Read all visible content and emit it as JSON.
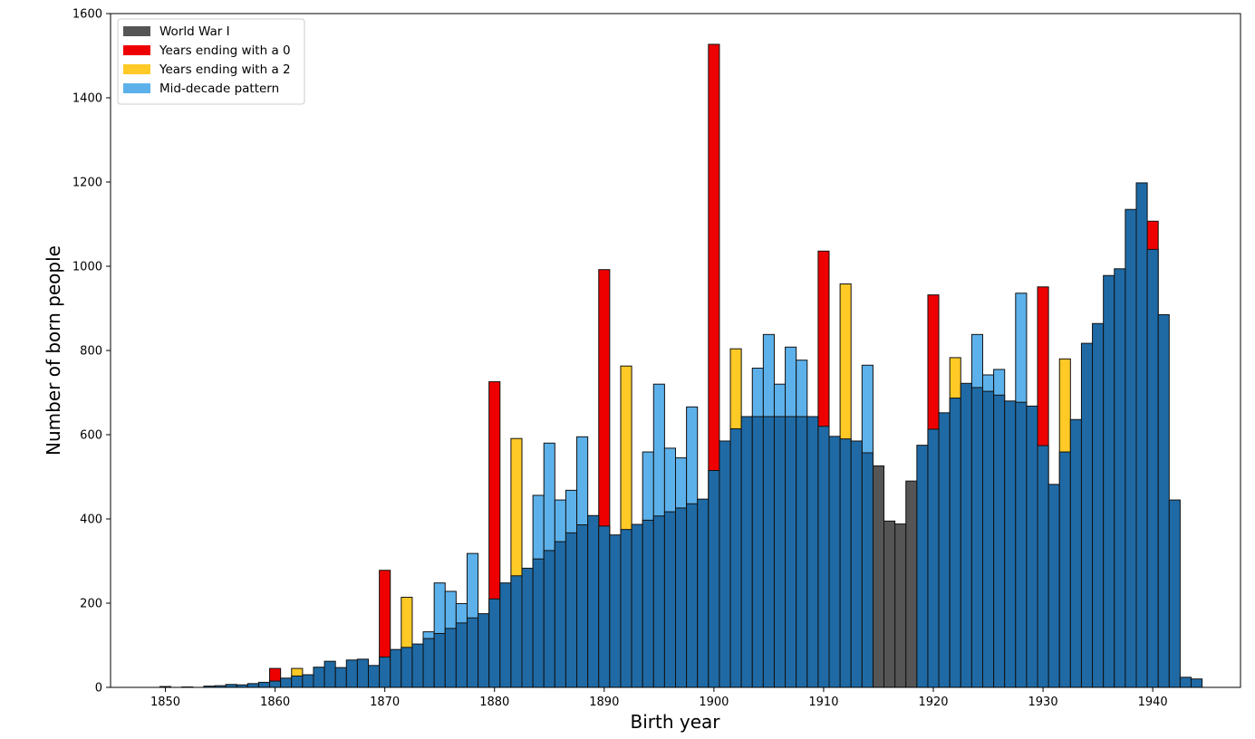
{
  "chart_data": {
    "type": "bar",
    "title": "",
    "xlabel": "Birth year",
    "ylabel": "Number of born people",
    "xlim": [
      1845,
      1948
    ],
    "ylim": [
      0,
      1600
    ],
    "x_ticks": [
      1850,
      1860,
      1870,
      1880,
      1890,
      1900,
      1910,
      1920,
      1930,
      1940
    ],
    "y_ticks": [
      0,
      200,
      400,
      600,
      800,
      1000,
      1200,
      1400,
      1600
    ],
    "grid": false,
    "legend_position": "top-left",
    "colors": {
      "base": "#1f6aa5",
      "world_war_1": "#555555",
      "ends_with_0": "#ee0000",
      "ends_with_2": "#ffc926",
      "mid_decade": "#5db1ea",
      "edge": "#111111"
    },
    "legend": [
      {
        "label": "World War I",
        "color": "#555555"
      },
      {
        "label": "Years ending with a 0",
        "color": "#ee0000"
      },
      {
        "label": "Years ending with a 2",
        "color": "#ffc926"
      },
      {
        "label": "Mid-decade pattern",
        "color": "#5db1ea"
      }
    ],
    "years": [
      1849,
      1850,
      1851,
      1852,
      1853,
      1854,
      1855,
      1856,
      1857,
      1858,
      1859,
      1860,
      1861,
      1862,
      1863,
      1864,
      1865,
      1866,
      1867,
      1868,
      1869,
      1870,
      1871,
      1872,
      1873,
      1874,
      1875,
      1876,
      1877,
      1878,
      1879,
      1880,
      1881,
      1882,
      1883,
      1884,
      1885,
      1886,
      1887,
      1888,
      1889,
      1890,
      1891,
      1892,
      1893,
      1894,
      1895,
      1896,
      1897,
      1898,
      1899,
      1900,
      1901,
      1902,
      1903,
      1904,
      1905,
      1906,
      1907,
      1908,
      1909,
      1910,
      1911,
      1912,
      1913,
      1914,
      1915,
      1916,
      1917,
      1918,
      1919,
      1920,
      1921,
      1922,
      1923,
      1924,
      1925,
      1926,
      1927,
      1928,
      1929,
      1930,
      1931,
      1932,
      1933,
      1934,
      1935,
      1936,
      1937,
      1938,
      1939,
      1940,
      1941,
      1942,
      1943,
      1944
    ],
    "series": [
      {
        "name": "Base",
        "role": "base",
        "values": [
          0,
          2,
          0,
          1,
          0,
          3,
          4,
          7,
          6,
          9,
          12,
          15,
          22,
          27,
          30,
          48,
          62,
          47,
          65,
          67,
          52,
          72,
          90,
          95,
          103,
          116,
          128,
          140,
          153,
          165,
          175,
          210,
          248,
          265,
          283,
          305,
          325,
          346,
          367,
          386,
          408,
          383,
          362,
          375,
          387,
          397,
          407,
          417,
          426,
          436,
          447,
          515,
          585,
          614,
          643,
          643,
          643,
          643,
          643,
          643,
          643,
          620,
          596,
          590,
          585,
          557,
          0,
          0,
          0,
          0,
          575,
          613,
          652,
          687,
          722,
          712,
          703,
          694,
          680,
          677,
          668,
          574,
          482,
          559,
          636,
          817,
          864,
          978,
          994,
          1135,
          1198,
          1040,
          885,
          445,
          24,
          20
        ]
      },
      {
        "name": "World War I",
        "role": "ww1",
        "values": [
          0,
          0,
          0,
          0,
          0,
          0,
          0,
          0,
          0,
          0,
          0,
          0,
          0,
          0,
          0,
          0,
          0,
          0,
          0,
          0,
          0,
          0,
          0,
          0,
          0,
          0,
          0,
          0,
          0,
          0,
          0,
          0,
          0,
          0,
          0,
          0,
          0,
          0,
          0,
          0,
          0,
          0,
          0,
          0,
          0,
          0,
          0,
          0,
          0,
          0,
          0,
          0,
          0,
          0,
          0,
          0,
          0,
          0,
          0,
          0,
          0,
          0,
          0,
          0,
          0,
          0,
          526,
          395,
          388,
          490,
          0,
          0,
          0,
          0,
          0,
          0,
          0,
          0,
          0,
          0,
          0,
          0,
          0,
          0,
          0,
          0,
          0,
          0,
          0,
          0,
          0,
          0,
          0,
          0,
          0,
          0
        ]
      },
      {
        "name": "Years ending with a 0",
        "role": "zero",
        "values": [
          0,
          0,
          0,
          0,
          0,
          0,
          0,
          0,
          0,
          0,
          0,
          45,
          0,
          0,
          0,
          0,
          0,
          0,
          0,
          0,
          0,
          278,
          0,
          0,
          0,
          0,
          0,
          0,
          0,
          0,
          0,
          726,
          0,
          0,
          0,
          0,
          0,
          0,
          0,
          0,
          0,
          992,
          0,
          0,
          0,
          0,
          0,
          0,
          0,
          0,
          0,
          1527,
          0,
          0,
          0,
          0,
          0,
          0,
          0,
          0,
          0,
          1036,
          0,
          0,
          0,
          0,
          0,
          0,
          0,
          0,
          0,
          932,
          0,
          0,
          0,
          0,
          0,
          0,
          0,
          0,
          0,
          951,
          0,
          0,
          0,
          0,
          0,
          0,
          0,
          0,
          0,
          1107,
          0,
          0,
          0,
          0
        ]
      },
      {
        "name": "Years ending with a 2",
        "role": "two",
        "values": [
          0,
          0,
          0,
          0,
          0,
          0,
          0,
          0,
          0,
          0,
          0,
          0,
          0,
          45,
          0,
          0,
          0,
          0,
          0,
          0,
          0,
          0,
          0,
          214,
          0,
          0,
          0,
          0,
          0,
          0,
          0,
          0,
          0,
          591,
          0,
          0,
          0,
          0,
          0,
          0,
          0,
          0,
          0,
          763,
          0,
          0,
          0,
          0,
          0,
          0,
          0,
          0,
          0,
          804,
          0,
          0,
          0,
          0,
          0,
          0,
          0,
          0,
          0,
          958,
          0,
          0,
          0,
          0,
          0,
          0,
          0,
          0,
          0,
          783,
          0,
          0,
          0,
          0,
          0,
          0,
          0,
          0,
          0,
          780,
          0,
          0,
          0,
          0,
          0,
          0,
          0,
          0,
          0,
          0,
          0,
          0
        ]
      },
      {
        "name": "Mid-decade pattern",
        "role": "mid",
        "values": [
          0,
          0,
          0,
          0,
          0,
          0,
          0,
          0,
          0,
          0,
          0,
          0,
          0,
          0,
          0,
          0,
          0,
          0,
          0,
          0,
          0,
          0,
          0,
          0,
          0,
          132,
          248,
          228,
          199,
          318,
          0,
          0,
          0,
          0,
          0,
          456,
          580,
          445,
          468,
          595,
          0,
          0,
          0,
          0,
          0,
          559,
          720,
          568,
          545,
          666,
          0,
          0,
          0,
          0,
          0,
          758,
          838,
          720,
          808,
          777,
          0,
          0,
          0,
          0,
          0,
          765,
          0,
          0,
          0,
          0,
          0,
          0,
          0,
          0,
          0,
          838,
          742,
          755,
          0,
          936,
          0,
          0,
          0,
          0,
          0,
          0,
          0,
          0,
          0,
          0,
          0,
          0,
          0,
          0,
          0,
          0
        ]
      }
    ]
  }
}
